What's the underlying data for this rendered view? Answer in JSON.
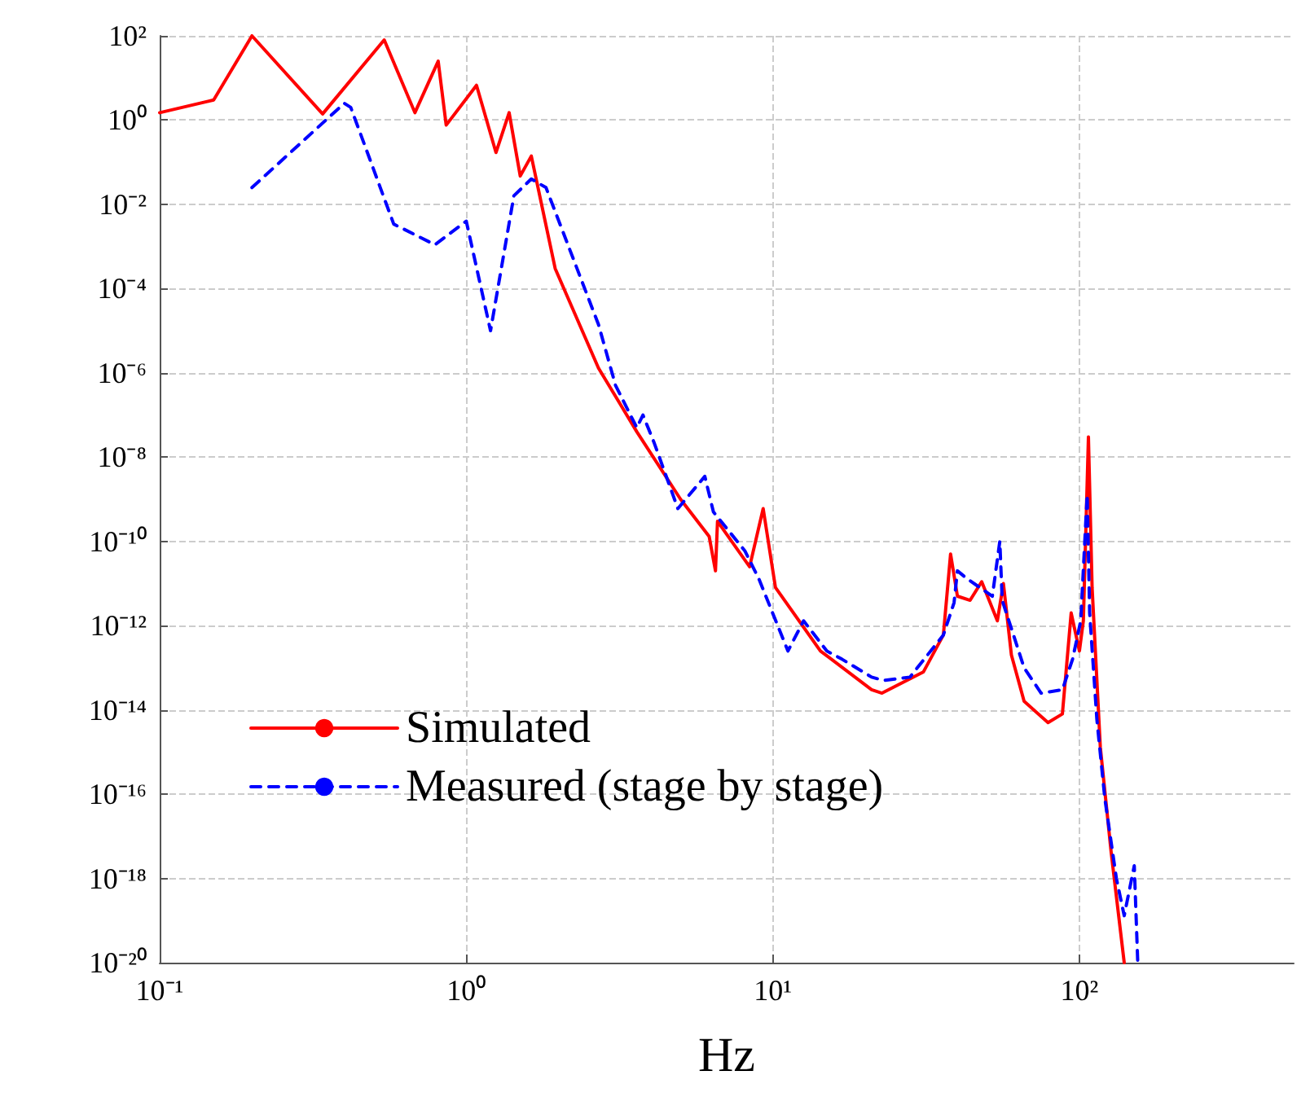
{
  "chart_data": {
    "type": "line",
    "xlabel": "Hz",
    "log": "xy",
    "grid": true,
    "legend": "bottom left",
    "xlim": [
      0.1,
      500
    ],
    "ylim": [
      1e-20,
      100
    ],
    "xticks": [
      {
        "value": 0.1,
        "label": "10⁻¹"
      },
      {
        "value": 1,
        "label": "10⁰"
      },
      {
        "value": 10,
        "label": "10¹"
      },
      {
        "value": 100,
        "label": "10²"
      }
    ],
    "yticks": [
      {
        "value": 1e-20,
        "label": "10⁻²⁰"
      },
      {
        "value": 1e-18,
        "label": "10⁻¹⁸"
      },
      {
        "value": 1e-16,
        "label": "10⁻¹⁶"
      },
      {
        "value": 1e-14,
        "label": "10⁻¹⁴"
      },
      {
        "value": 1e-12,
        "label": "10⁻¹²"
      },
      {
        "value": 1e-10,
        "label": "10⁻¹⁰"
      },
      {
        "value": 1e-08,
        "label": "10⁻⁸"
      },
      {
        "value": 1e-06,
        "label": "10⁻⁶"
      },
      {
        "value": 0.0001,
        "label": "10⁻⁴"
      },
      {
        "value": 0.01,
        "label": "10⁻²"
      },
      {
        "value": 1,
        "label": "10⁰"
      },
      {
        "value": 100,
        "label": "10²"
      }
    ],
    "series": [
      {
        "name": "Simulated",
        "color": "#ff0000",
        "line_style": "solid",
        "x": [
          0.1,
          0.15,
          0.2,
          0.34,
          0.54,
          0.68,
          0.81,
          0.86,
          1.08,
          1.25,
          1.38,
          1.5,
          1.63,
          1.95,
          2.7,
          3.6,
          5.0,
          6.2,
          6.5,
          6.6,
          8.4,
          9.3,
          10.2,
          14.3,
          21,
          22.7,
          31,
          36,
          38,
          40,
          44,
          48,
          54,
          56.5,
          60,
          66,
          79,
          88,
          94,
          100,
          103,
          107,
          110,
          117,
          127,
          140
        ],
        "values": [
          1.5,
          3,
          100,
          1.4,
          80,
          1.5,
          25,
          0.76,
          6.7,
          0.17,
          1.5,
          0.047,
          0.14,
          0.0003,
          1.3e-06,
          4e-08,
          1e-09,
          1.3e-10,
          2e-11,
          3e-10,
          2.5e-11,
          6e-10,
          8e-12,
          2.5e-13,
          3e-14,
          2.5e-14,
          8e-14,
          6e-13,
          5e-11,
          5e-12,
          4e-12,
          1.1e-11,
          1.3e-12,
          1e-11,
          2e-13,
          1.6e-14,
          5e-15,
          8e-15,
          2e-12,
          2.5e-13,
          1.3e-12,
          3e-08,
          8e-12,
          1.3e-15,
          4e-18,
          1e-20
        ]
      },
      {
        "name": "Measured (stage by stage)",
        "color": "#0000ff",
        "line_style": "dashed",
        "x": [
          0.2,
          0.4,
          0.42,
          0.58,
          0.79,
          1.0,
          1.2,
          1.43,
          1.63,
          1.82,
          2.7,
          3.07,
          3.6,
          3.77,
          4.1,
          4.9,
          6.0,
          6.4,
          8.1,
          9.0,
          11.2,
          12.6,
          15,
          16.8,
          21,
          23,
          28,
          36,
          39,
          40,
          43,
          52,
          55,
          56,
          66,
          75,
          88,
          95,
          101,
          106,
          108,
          114,
          121,
          132,
          140,
          151,
          155
        ],
        "values": [
          0.025,
          2.5,
          2,
          0.0034,
          0.0011,
          0.004,
          1e-05,
          0.016,
          0.04,
          0.025,
          1.4e-05,
          5e-07,
          5e-08,
          1e-07,
          2.2e-08,
          6e-10,
          3.5e-09,
          5e-10,
          6e-11,
          1.3e-11,
          2.5e-13,
          1.3e-12,
          2.5e-13,
          1.6e-13,
          6e-14,
          5e-14,
          6e-14,
          6e-13,
          3.5e-12,
          2e-11,
          1.3e-11,
          5e-12,
          1e-10,
          4e-12,
          1e-13,
          2.5e-14,
          3e-14,
          1.6e-13,
          1.3e-12,
          1.3e-09,
          2e-12,
          6e-15,
          8e-17,
          1e-18,
          1.3e-19,
          2e-18,
          1e-20
        ]
      }
    ]
  }
}
